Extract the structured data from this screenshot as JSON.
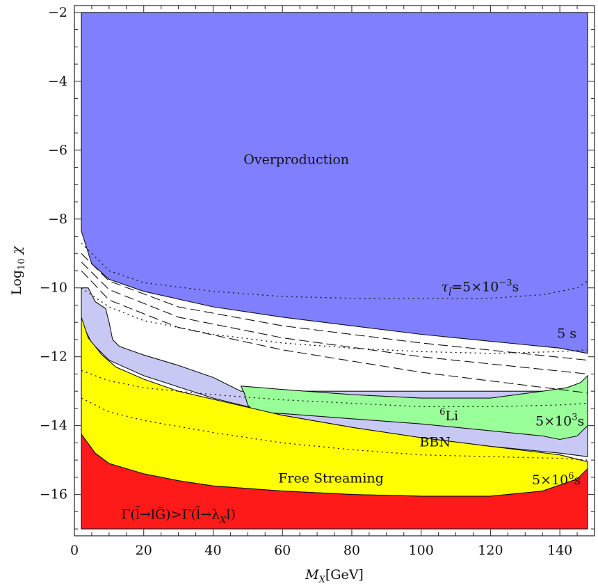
{
  "chart_data": {
    "type": "area",
    "xlabel": "M_X [GeV]",
    "ylabel": "Log10 χ",
    "xlim": [
      0,
      150
    ],
    "ylim": [
      -17.2,
      -1.8
    ],
    "x_ticks": [
      0,
      20,
      40,
      60,
      80,
      100,
      120,
      140
    ],
    "y_ticks": [
      -16,
      -14,
      -12,
      -10,
      -8,
      -6,
      -4,
      -2
    ],
    "x_tick_labels": [
      "0",
      "20",
      "40",
      "60",
      "80",
      "100",
      "120",
      "140"
    ],
    "y_tick_labels": [
      "−16",
      "−14",
      "−12",
      "−10",
      "−8",
      "−6",
      "−4",
      "−2"
    ],
    "grid": false,
    "regions": [
      {
        "name": "Overproduction",
        "color": "#8080ff",
        "upper": [
          [
            2,
            -2.0
          ],
          [
            148,
            -2.0
          ]
        ],
        "lower": [
          [
            2,
            -8.35
          ],
          [
            5,
            -9.3
          ],
          [
            10,
            -9.75
          ],
          [
            20,
            -10.1
          ],
          [
            40,
            -10.55
          ],
          [
            60,
            -10.85
          ],
          [
            80,
            -11.1
          ],
          [
            100,
            -11.35
          ],
          [
            120,
            -11.55
          ],
          [
            140,
            -11.75
          ],
          [
            148,
            -11.9
          ]
        ]
      },
      {
        "name": "BBN",
        "color": "#c8c8f5",
        "upper": [
          [
            2,
            -10.0
          ],
          [
            4,
            -10.0
          ],
          [
            6,
            -10.4
          ],
          [
            9,
            -10.6
          ],
          [
            10,
            -11.0
          ],
          [
            11,
            -11.5
          ],
          [
            13,
            -11.7
          ],
          [
            20,
            -11.95
          ],
          [
            30,
            -12.25
          ],
          [
            40,
            -12.6
          ],
          [
            45,
            -12.85
          ],
          [
            48,
            -13.0
          ],
          [
            140,
            -13.0
          ],
          [
            148,
            -12.8
          ]
        ],
        "lower": [
          [
            2,
            -11.0
          ],
          [
            5,
            -11.6
          ],
          [
            10,
            -12.1
          ],
          [
            20,
            -12.55
          ],
          [
            40,
            -13.2
          ],
          [
            60,
            -13.7
          ],
          [
            80,
            -14.05
          ],
          [
            100,
            -14.35
          ],
          [
            120,
            -14.6
          ],
          [
            140,
            -14.8
          ],
          [
            148,
            -14.9
          ]
        ]
      },
      {
        "name": "6Li",
        "color": "#99ff99",
        "upper": [
          [
            48,
            -12.85
          ],
          [
            60,
            -12.95
          ],
          [
            80,
            -13.1
          ],
          [
            100,
            -13.2
          ],
          [
            120,
            -13.2
          ],
          [
            135,
            -13.0
          ],
          [
            142,
            -12.9
          ],
          [
            146,
            -12.75
          ],
          [
            148,
            -12.55
          ]
        ],
        "lower": [
          [
            48,
            -12.85
          ],
          [
            49,
            -13.05
          ],
          [
            50,
            -13.4
          ],
          [
            52,
            -13.6
          ],
          [
            60,
            -13.65
          ],
          [
            80,
            -13.8
          ],
          [
            100,
            -13.95
          ],
          [
            120,
            -14.15
          ],
          [
            135,
            -14.3
          ],
          [
            140,
            -14.4
          ],
          [
            145,
            -14.3
          ],
          [
            148,
            -14.0
          ]
        ]
      },
      {
        "name": "Free Streaming",
        "color": "#ffff00",
        "upper": [
          [
            2,
            -10.85
          ],
          [
            4,
            -11.45
          ],
          [
            8,
            -11.95
          ],
          [
            12,
            -12.3
          ],
          [
            20,
            -12.65
          ],
          [
            30,
            -13.0
          ],
          [
            45,
            -13.35
          ],
          [
            60,
            -13.7
          ],
          [
            80,
            -14.05
          ],
          [
            100,
            -14.35
          ],
          [
            120,
            -14.6
          ],
          [
            140,
            -14.85
          ],
          [
            148,
            -15.05
          ]
        ],
        "lower": [
          [
            2,
            -14.25
          ],
          [
            6,
            -14.8
          ],
          [
            10,
            -15.1
          ],
          [
            20,
            -15.4
          ],
          [
            30,
            -15.6
          ],
          [
            40,
            -15.75
          ],
          [
            60,
            -15.9
          ],
          [
            80,
            -16.0
          ],
          [
            100,
            -16.05
          ],
          [
            120,
            -16.05
          ],
          [
            135,
            -15.9
          ],
          [
            145,
            -15.55
          ],
          [
            148,
            -15.25
          ]
        ]
      },
      {
        "name": "Gamma region",
        "color": "#ff1a1a",
        "upper": [
          [
            2,
            -14.25
          ],
          [
            6,
            -14.8
          ],
          [
            10,
            -15.1
          ],
          [
            20,
            -15.4
          ],
          [
            30,
            -15.6
          ],
          [
            40,
            -15.75
          ],
          [
            60,
            -15.9
          ],
          [
            80,
            -16.0
          ],
          [
            100,
            -16.05
          ],
          [
            120,
            -16.05
          ],
          [
            135,
            -15.9
          ],
          [
            145,
            -15.55
          ],
          [
            148,
            -15.25
          ]
        ],
        "lower": [
          [
            2,
            -17.0
          ],
          [
            148,
            -17.0
          ]
        ]
      }
    ],
    "dotted_contours": [
      {
        "points": [
          [
            2,
            -8.7
          ],
          [
            10,
            -9.5
          ],
          [
            20,
            -9.85
          ],
          [
            40,
            -10.1
          ],
          [
            60,
            -10.25
          ],
          [
            80,
            -10.3
          ],
          [
            100,
            -10.3
          ],
          [
            120,
            -10.3
          ],
          [
            135,
            -10.2
          ],
          [
            145,
            -10.0
          ],
          [
            148,
            -9.8
          ]
        ]
      },
      {
        "points": [
          [
            2,
            -10.0
          ],
          [
            10,
            -10.55
          ],
          [
            20,
            -10.95
          ],
          [
            40,
            -11.35
          ],
          [
            60,
            -11.6
          ],
          [
            80,
            -11.75
          ],
          [
            100,
            -11.85
          ],
          [
            120,
            -11.9
          ],
          [
            140,
            -11.85
          ],
          [
            148,
            -11.8
          ]
        ]
      },
      {
        "points": [
          [
            2,
            -12.4
          ],
          [
            10,
            -12.7
          ],
          [
            20,
            -12.9
          ],
          [
            40,
            -13.1
          ],
          [
            60,
            -13.25
          ],
          [
            80,
            -13.35
          ],
          [
            100,
            -13.45
          ],
          [
            120,
            -13.45
          ],
          [
            140,
            -13.4
          ],
          [
            148,
            -13.35
          ]
        ]
      },
      {
        "points": [
          [
            2,
            -13.2
          ],
          [
            10,
            -13.6
          ],
          [
            20,
            -13.85
          ],
          [
            40,
            -14.2
          ],
          [
            60,
            -14.5
          ],
          [
            80,
            -14.7
          ],
          [
            100,
            -14.85
          ],
          [
            120,
            -14.9
          ],
          [
            140,
            -14.95
          ],
          [
            148,
            -15.0
          ]
        ]
      }
    ],
    "dashed_lines": [
      {
        "points": [
          [
            2,
            -9.0
          ],
          [
            10,
            -9.8
          ],
          [
            30,
            -10.55
          ],
          [
            60,
            -11.1
          ],
          [
            100,
            -11.6
          ],
          [
            148,
            -12.1
          ]
        ]
      },
      {
        "points": [
          [
            2,
            -9.25
          ],
          [
            10,
            -10.05
          ],
          [
            30,
            -10.85
          ],
          [
            60,
            -11.45
          ],
          [
            100,
            -12.0
          ],
          [
            148,
            -12.5
          ]
        ]
      },
      {
        "points": [
          [
            2,
            -9.5
          ],
          [
            10,
            -10.35
          ],
          [
            30,
            -11.15
          ],
          [
            60,
            -11.8
          ],
          [
            100,
            -12.45
          ],
          [
            148,
            -13.05
          ]
        ]
      }
    ],
    "annotations": [
      {
        "id": "overproduction",
        "text": "Overproduction",
        "x": 64,
        "y": -6.4
      },
      {
        "id": "tau",
        "base": "τ",
        "sub": "l̃",
        "mid": "=5×10",
        "sup": "−3",
        "tail": "s",
        "x": 117,
        "y": -10.1
      },
      {
        "id": "five_s",
        "text": "5 s",
        "x": 142,
        "y": -11.45
      },
      {
        "id": "li6",
        "sup": "6",
        "text": "Li",
        "x": 108,
        "y": -13.85
      },
      {
        "id": "five_e3",
        "base": "5×10",
        "sup": "3",
        "tail": "s",
        "x": 140,
        "y": -14.0
      },
      {
        "id": "bbn",
        "text": "BBN",
        "x": 104,
        "y": -14.6
      },
      {
        "id": "free_streaming",
        "text": "Free Streaming",
        "x": 74,
        "y": -15.65
      },
      {
        "id": "five_e6",
        "base": "5×10",
        "sup": "6",
        "tail": "s",
        "x": 139,
        "y": -15.7
      },
      {
        "id": "gamma",
        "text": "Γ(l̃→lG̃)>Γ(l̃→λ",
        "sub": "X",
        "tail": "l)",
        "x": 30,
        "y": -16.7
      }
    ]
  }
}
